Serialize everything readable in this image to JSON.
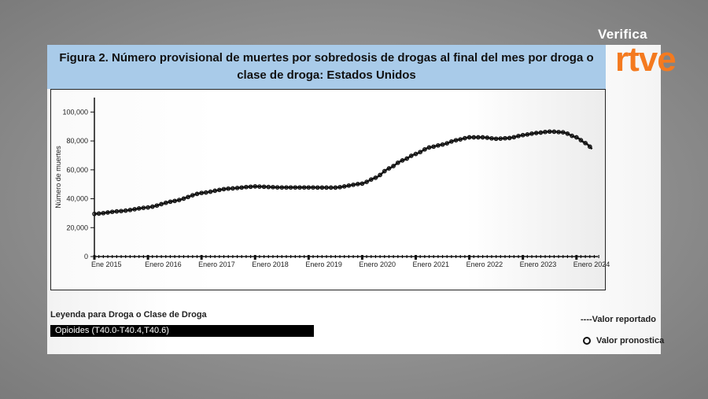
{
  "branding": {
    "top_text": "Verifica",
    "logo_text": "rtve",
    "logo_color": "#f47a1f"
  },
  "chart_data": {
    "type": "line",
    "title": "Figura 2. Número provisional de muertes por sobredosis de drogas al final del mes por droga o clase de droga: Estados Unidos",
    "xlabel": "",
    "ylabel": "Número de muertes",
    "ylim": [
      0,
      110000
    ],
    "yticks": [
      0,
      20000,
      40000,
      60000,
      80000,
      100000
    ],
    "ytick_labels": [
      "0",
      "20,000",
      "40,000",
      "60,000",
      "80,000",
      "100,000"
    ],
    "xtick_labels": [
      "Ene 2015",
      "Enero 2016",
      "Enero 2017",
      "Enero 2018",
      "Enero 2019",
      "Enero 2020",
      "Enero 2021",
      "Enero 2022",
      "Enero 2023",
      "Enero 2024"
    ],
    "xlim": [
      2015.0,
      2024.4
    ],
    "grid": false,
    "series": [
      {
        "name": "Opioides (T40.0-T40.4,T40.6)",
        "color": "#111111",
        "x": [
          2015.0,
          2015.5,
          2016.0,
          2016.5,
          2017.0,
          2017.5,
          2018.0,
          2018.5,
          2019.0,
          2019.5,
          2020.0,
          2020.25,
          2020.5,
          2020.75,
          2021.0,
          2021.25,
          2021.5,
          2021.75,
          2022.0,
          2022.25,
          2022.5,
          2022.75,
          2023.0,
          2023.25,
          2023.5,
          2023.75,
          2024.0,
          2024.17,
          2024.33
        ],
        "values": [
          29500,
          31500,
          34000,
          38500,
          44000,
          47000,
          48500,
          47800,
          47800,
          47700,
          50500,
          54500,
          61000,
          66500,
          71000,
          75500,
          77500,
          80500,
          82500,
          82500,
          81500,
          82000,
          84000,
          85500,
          86500,
          86000,
          82500,
          78500,
          73500
        ]
      }
    ],
    "legend": {
      "title": "Leyenda para Droga o Clase de Droga",
      "series_label": "Opioides (T40.0-T40.4,T40.6)",
      "reported_label": "----Valor reportado",
      "predicted_label": "Valor pronostica",
      "placement": "bottom"
    }
  }
}
